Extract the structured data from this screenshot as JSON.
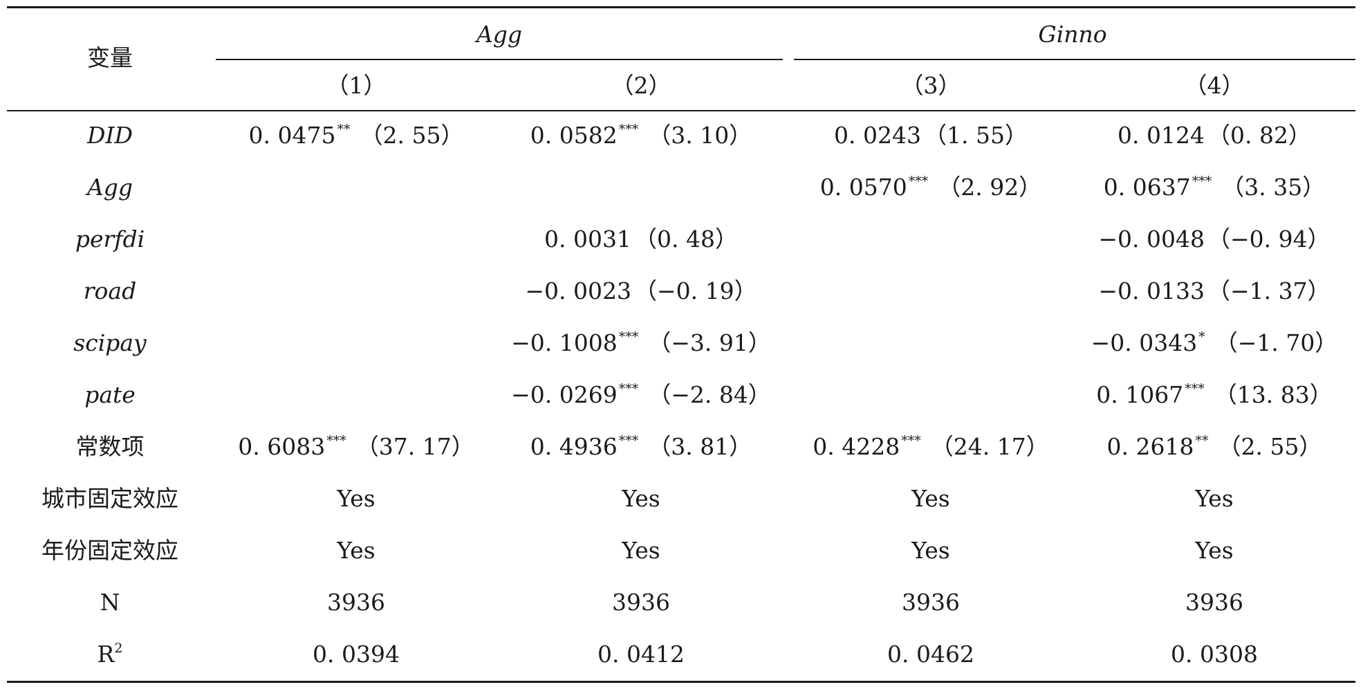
{
  "header": {
    "variable_label": "变量",
    "group_agg": "Agg",
    "group_ginno": "Ginno",
    "columns": [
      "（1）",
      "（2）",
      "（3）",
      "（4）"
    ]
  },
  "rows": [
    {
      "label": "DID",
      "italic": true,
      "cells": [
        {
          "coef": "0. 0475",
          "stars": "**",
          "t": "（2. 55）"
        },
        {
          "coef": "0. 0582",
          "stars": "***",
          "t": "（3. 10）"
        },
        {
          "coef": "0. 0243",
          "stars": "",
          "t": "（1. 55）"
        },
        {
          "coef": "0. 0124",
          "stars": "",
          "t": "（0. 82）"
        }
      ]
    },
    {
      "label": "Agg",
      "italic": true,
      "cells": [
        {
          "coef": "",
          "stars": "",
          "t": ""
        },
        {
          "coef": "",
          "stars": "",
          "t": ""
        },
        {
          "coef": "0. 0570",
          "stars": "***",
          "t": "（2. 92）"
        },
        {
          "coef": "0. 0637",
          "stars": "***",
          "t": "（3. 35）"
        }
      ]
    },
    {
      "label": "perfdi",
      "italic": true,
      "cells": [
        {
          "coef": "",
          "stars": "",
          "t": ""
        },
        {
          "coef": "0. 0031",
          "stars": "",
          "t": "（0. 48）"
        },
        {
          "coef": "",
          "stars": "",
          "t": ""
        },
        {
          "coef": "−0. 0048",
          "stars": "",
          "t": "（−0. 94）"
        }
      ]
    },
    {
      "label": "road",
      "italic": true,
      "cells": [
        {
          "coef": "",
          "stars": "",
          "t": ""
        },
        {
          "coef": "−0. 0023",
          "stars": "",
          "t": "（−0. 19）"
        },
        {
          "coef": "",
          "stars": "",
          "t": ""
        },
        {
          "coef": "−0. 0133",
          "stars": "",
          "t": "（−1. 37）"
        }
      ]
    },
    {
      "label": "scipay",
      "italic": true,
      "cells": [
        {
          "coef": "",
          "stars": "",
          "t": ""
        },
        {
          "coef": "−0. 1008",
          "stars": "***",
          "t": "（−3. 91）"
        },
        {
          "coef": "",
          "stars": "",
          "t": ""
        },
        {
          "coef": "−0. 0343",
          "stars": "*",
          "t": "（−1. 70）"
        }
      ]
    },
    {
      "label": "pate",
      "italic": true,
      "cells": [
        {
          "coef": "",
          "stars": "",
          "t": ""
        },
        {
          "coef": "−0. 0269",
          "stars": "***",
          "t": "（−2. 84）"
        },
        {
          "coef": "",
          "stars": "",
          "t": ""
        },
        {
          "coef": "0. 1067",
          "stars": "***",
          "t": "（13. 83）"
        }
      ]
    },
    {
      "label": "常数项",
      "italic": false,
      "cells": [
        {
          "coef": "0. 6083",
          "stars": "***",
          "t": "（37. 17）"
        },
        {
          "coef": "0. 4936",
          "stars": "***",
          "t": "（3. 81）"
        },
        {
          "coef": "0. 4228",
          "stars": "***",
          "t": "（24. 17）"
        },
        {
          "coef": "0. 2618",
          "stars": "**",
          "t": "（2. 55）"
        }
      ]
    },
    {
      "label": "城市固定效应",
      "italic": false,
      "cells": [
        {
          "coef": "Yes",
          "stars": "",
          "t": ""
        },
        {
          "coef": "Yes",
          "stars": "",
          "t": ""
        },
        {
          "coef": "Yes",
          "stars": "",
          "t": ""
        },
        {
          "coef": "Yes",
          "stars": "",
          "t": ""
        }
      ]
    },
    {
      "label": "年份固定效应",
      "italic": false,
      "cells": [
        {
          "coef": "Yes",
          "stars": "",
          "t": ""
        },
        {
          "coef": "Yes",
          "stars": "",
          "t": ""
        },
        {
          "coef": "Yes",
          "stars": "",
          "t": ""
        },
        {
          "coef": "Yes",
          "stars": "",
          "t": ""
        }
      ]
    },
    {
      "label": "N",
      "italic": false,
      "cells": [
        {
          "coef": "3936",
          "stars": "",
          "t": ""
        },
        {
          "coef": "3936",
          "stars": "",
          "t": ""
        },
        {
          "coef": "3936",
          "stars": "",
          "t": ""
        },
        {
          "coef": "3936",
          "stars": "",
          "t": ""
        }
      ]
    },
    {
      "label": "R",
      "label_sup": "2",
      "italic": false,
      "cells": [
        {
          "coef": "0. 0394",
          "stars": "",
          "t": ""
        },
        {
          "coef": "0. 0412",
          "stars": "",
          "t": ""
        },
        {
          "coef": "0. 0462",
          "stars": "",
          "t": ""
        },
        {
          "coef": "0. 0308",
          "stars": "",
          "t": ""
        }
      ]
    }
  ]
}
